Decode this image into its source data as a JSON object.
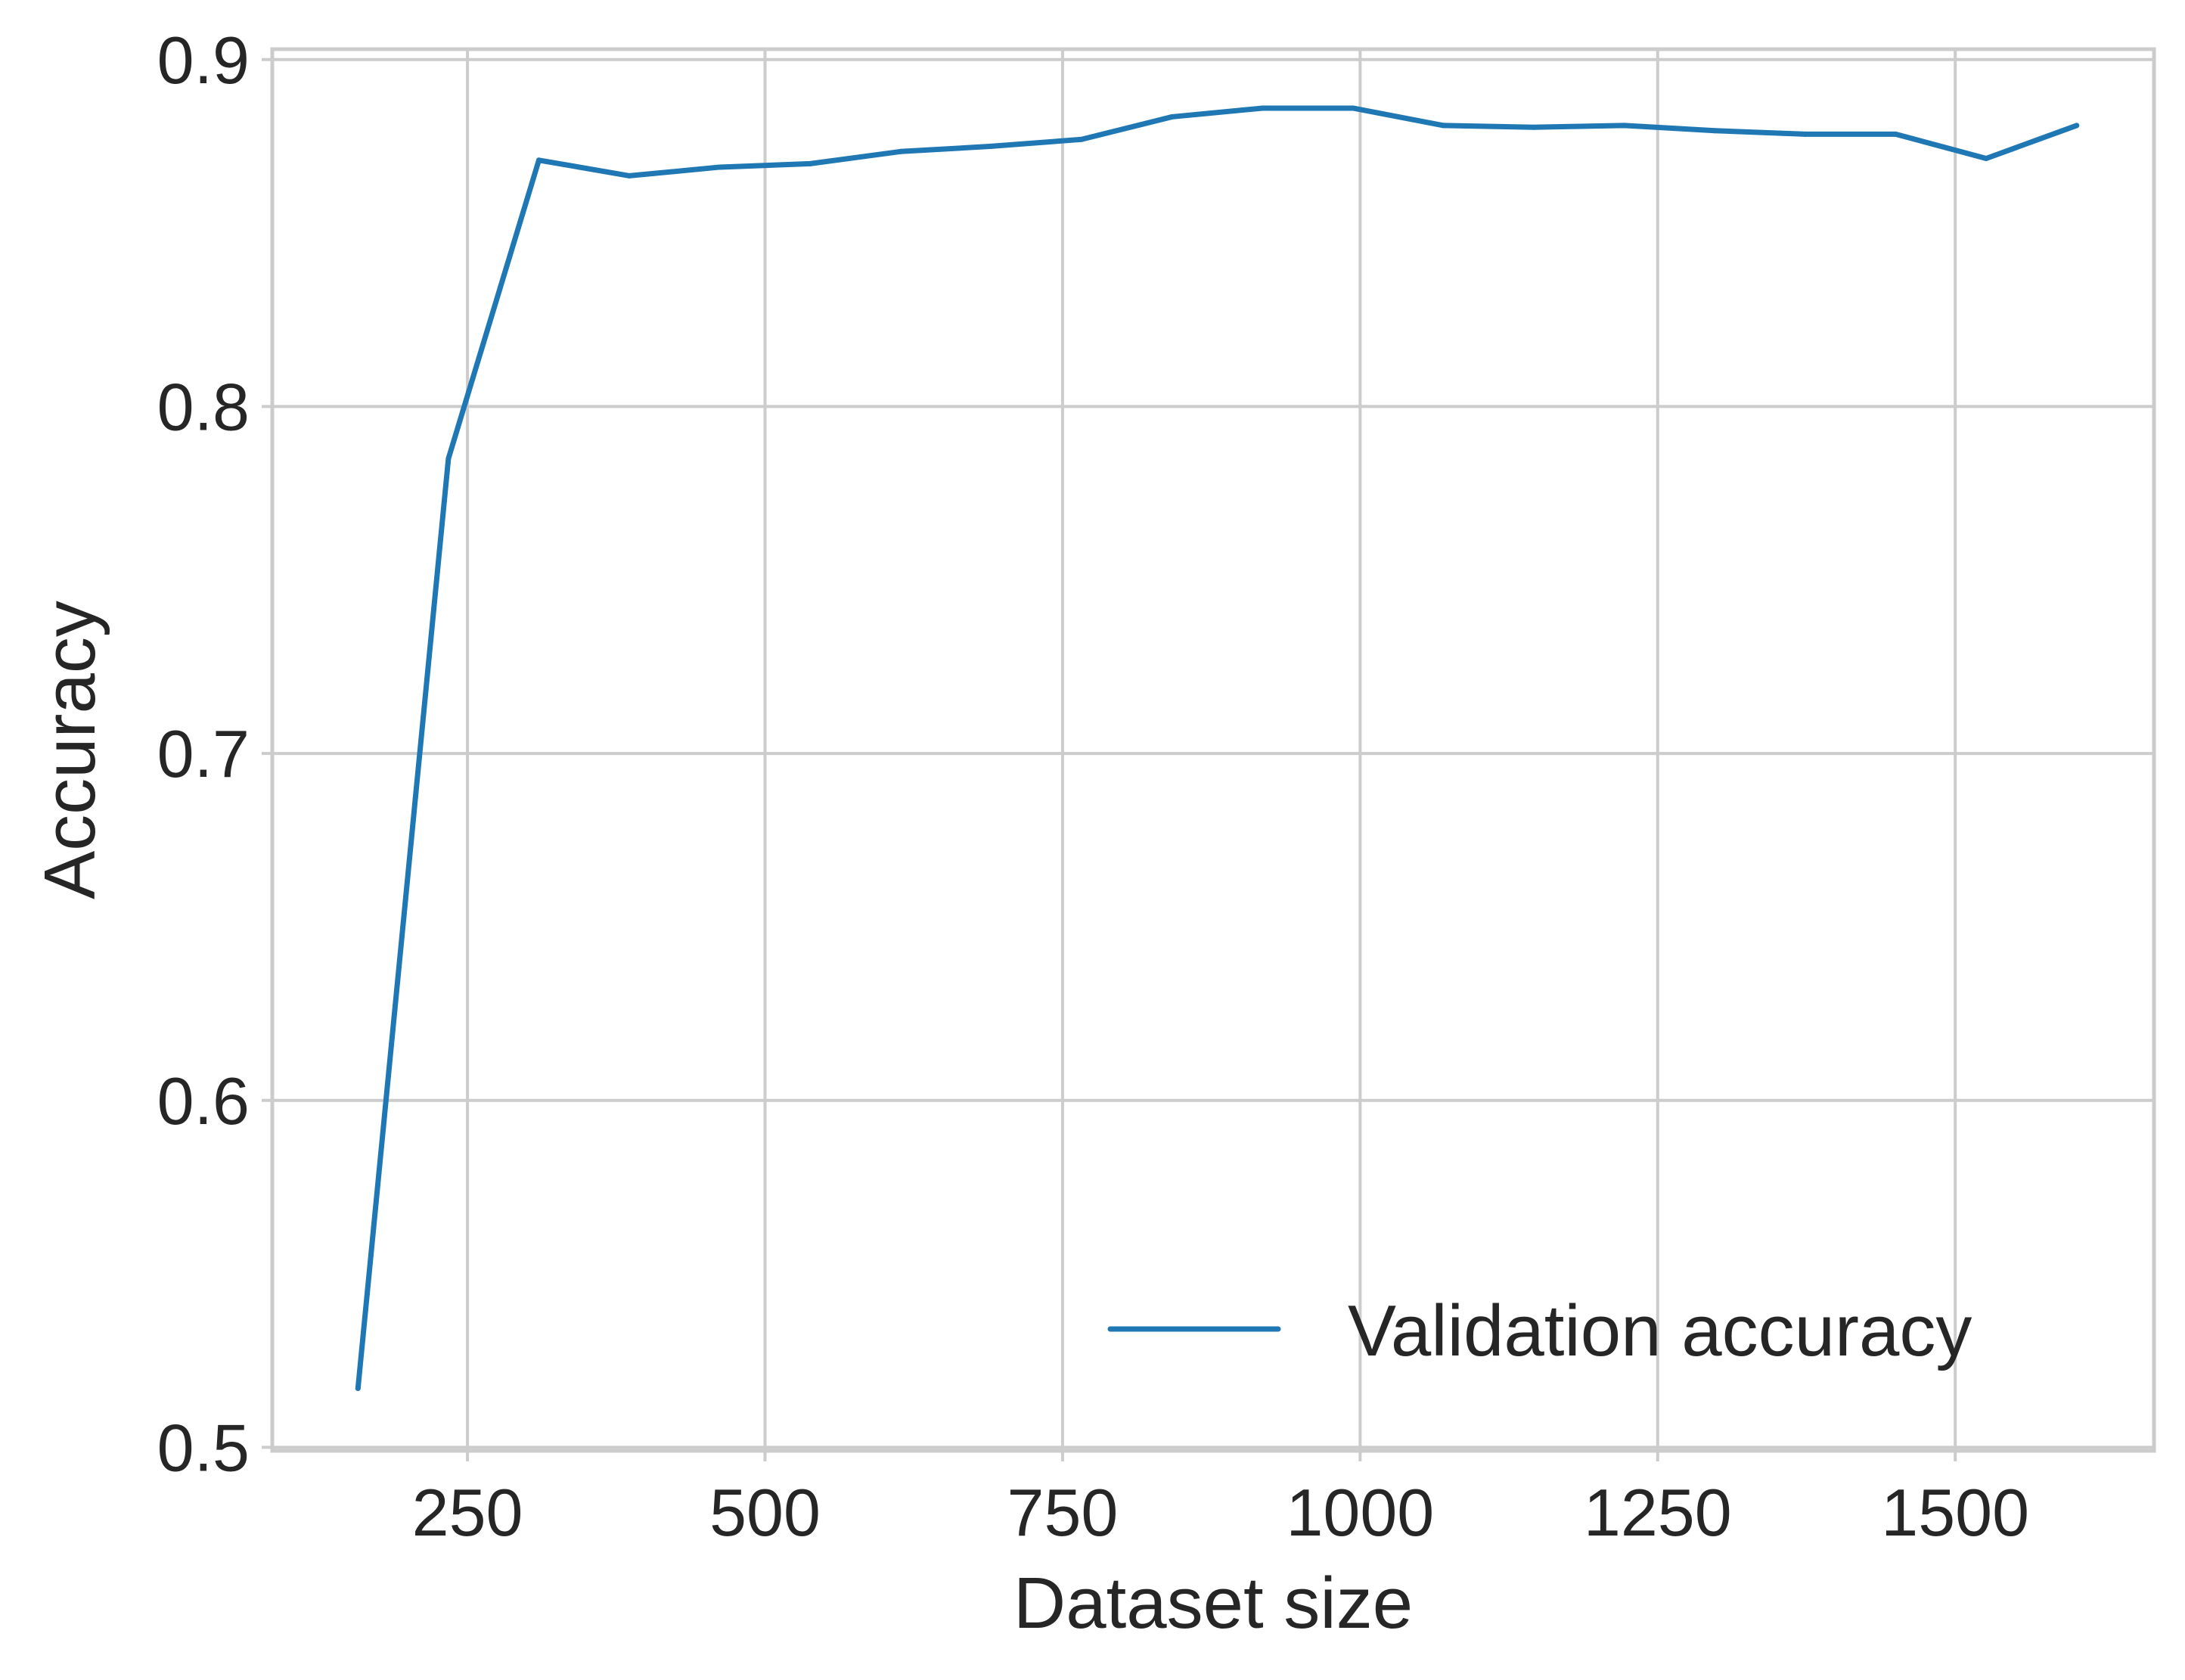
{
  "chart_data": {
    "type": "line",
    "title": "",
    "xlabel": "Dataset size",
    "ylabel": "Accuracy",
    "xlim": [
      86,
      1667
    ],
    "ylim": [
      0.499,
      0.903
    ],
    "x_ticks": [
      250,
      500,
      750,
      1000,
      1250,
      1500
    ],
    "x_tick_labels": [
      "250",
      "500",
      "750",
      "1000",
      "1250",
      "1500"
    ],
    "y_ticks": [
      0.5,
      0.6,
      0.7,
      0.8,
      0.9
    ],
    "y_tick_labels": [
      "0.5",
      "0.6",
      "0.7",
      "0.8",
      "0.9"
    ],
    "grid": true,
    "legend_position": "lower-right",
    "series": [
      {
        "name": "Validation accuracy",
        "color": "#1f77b4",
        "x": [
          158,
          234,
          310,
          386,
          462,
          538,
          614,
          690,
          766,
          842,
          918,
          994,
          1070,
          1146,
          1222,
          1298,
          1374,
          1450,
          1526,
          1602
        ],
        "y": [
          0.517,
          0.785,
          0.871,
          0.8665,
          0.869,
          0.87,
          0.8735,
          0.875,
          0.877,
          0.8835,
          0.886,
          0.886,
          0.881,
          0.8805,
          0.881,
          0.8795,
          0.8785,
          0.8785,
          0.8715,
          0.881
        ]
      }
    ]
  },
  "colors": {
    "line": "#1f77b4",
    "grid": "#cccccc",
    "text": "#262626",
    "background": "#ffffff"
  }
}
